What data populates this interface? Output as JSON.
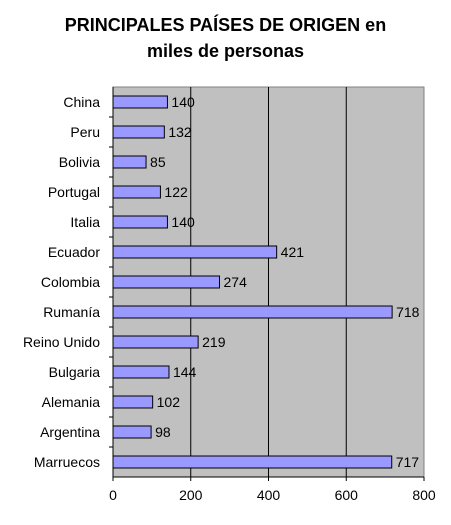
{
  "chart_data": {
    "type": "bar",
    "orientation": "horizontal",
    "title_lines": [
      "PRINCIPALES PAÍSES DE ORIGEN en",
      "miles de personas"
    ],
    "categories": [
      "China",
      "Peru",
      "Bolivia",
      "Portugal",
      "Italia",
      "Ecuador",
      "Colombia",
      "Rumanía",
      "Reino Unido",
      "Bulgaria",
      "Alemania",
      "Argentina",
      "Marruecos"
    ],
    "values": [
      140,
      132,
      85,
      122,
      140,
      421,
      274,
      718,
      219,
      144,
      102,
      98,
      717
    ],
    "xlim": [
      0,
      800
    ],
    "xticks": [
      0,
      200,
      400,
      600,
      800
    ],
    "grid": "vertical",
    "legend": "none",
    "colors": {
      "plot_bg": "#c0c0c0",
      "bar_fill": "#9999ff",
      "bar_stroke": "#000000",
      "grid": "#000000"
    }
  }
}
